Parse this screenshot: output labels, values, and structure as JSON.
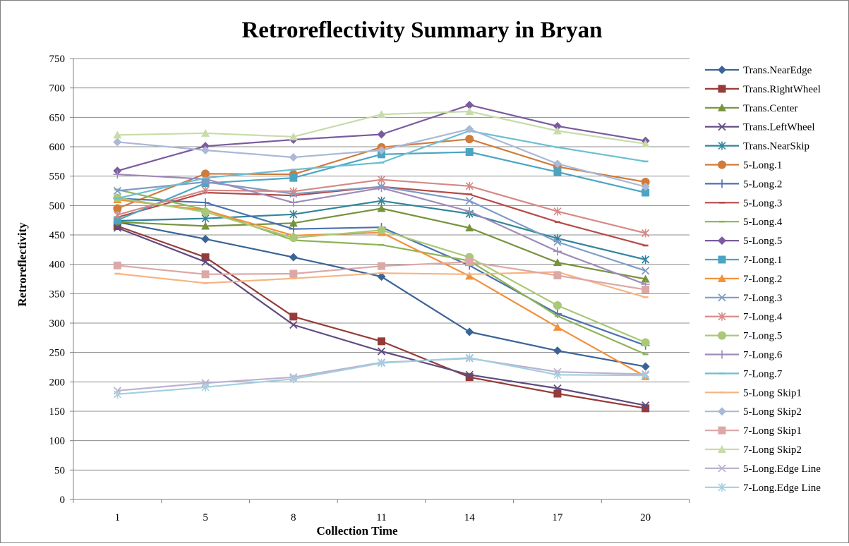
{
  "chart_data": {
    "type": "line",
    "title": "Retroreflectivity Summary in Bryan",
    "xlabel": "Collection Time",
    "ylabel": "Retroreflectivity",
    "categories": [
      "1",
      "5",
      "8",
      "11",
      "14",
      "17",
      "20"
    ],
    "ylim": [
      0,
      750
    ],
    "ytick_step": 50,
    "grid": true,
    "legend_position": "right",
    "series": [
      {
        "name": "Trans.NearEdge",
        "color": "#3b6496",
        "marker": "diamond",
        "values": [
          472,
          443,
          412,
          379,
          285,
          253,
          226
        ]
      },
      {
        "name": "Trans.RightWheel",
        "color": "#963b38",
        "marker": "square",
        "values": [
          465,
          412,
          311,
          269,
          208,
          180,
          155
        ]
      },
      {
        "name": "Trans.Center",
        "color": "#77933c",
        "marker": "triangle",
        "values": [
          472,
          465,
          470,
          495,
          462,
          403,
          375
        ]
      },
      {
        "name": "Trans.LeftWheel",
        "color": "#5f4b80",
        "marker": "x",
        "values": [
          462,
          404,
          297,
          252,
          212,
          189,
          160
        ]
      },
      {
        "name": "Trans.NearSkip",
        "color": "#31859c",
        "marker": "star",
        "values": [
          474,
          478,
          485,
          508,
          486,
          444,
          408
        ]
      },
      {
        "name": "5-Long.1",
        "color": "#d07b3c",
        "marker": "circle",
        "values": [
          495,
          554,
          553,
          599,
          613,
          566,
          540
        ]
      },
      {
        "name": "5-Long.2",
        "color": "#4a72b0",
        "marker": "plus",
        "values": [
          512,
          505,
          460,
          463,
          398,
          316,
          262
        ]
      },
      {
        "name": "5-Long.3",
        "color": "#b64a47",
        "marker": "dash",
        "values": [
          480,
          522,
          517,
          532,
          519,
          472,
          432
        ]
      },
      {
        "name": "5-Long.4",
        "color": "#8db356",
        "marker": "dash",
        "values": [
          527,
          493,
          441,
          433,
          406,
          312,
          247
        ]
      },
      {
        "name": "5-Long.5",
        "color": "#7a5b9e",
        "marker": "diamond",
        "values": [
          559,
          601,
          612,
          621,
          671,
          635,
          610
        ]
      },
      {
        "name": "7-Long.1",
        "color": "#4ba5c2",
        "marker": "square",
        "values": [
          475,
          538,
          547,
          587,
          591,
          557,
          522
        ]
      },
      {
        "name": "7-Long.2",
        "color": "#f2913b",
        "marker": "triangle",
        "values": [
          510,
          492,
          449,
          454,
          380,
          293,
          209
        ]
      },
      {
        "name": "7-Long.3",
        "color": "#7d9bc6",
        "marker": "x",
        "values": [
          525,
          540,
          520,
          532,
          508,
          438,
          389
        ]
      },
      {
        "name": "7-Long.4",
        "color": "#d68986",
        "marker": "star",
        "values": [
          484,
          526,
          524,
          544,
          533,
          490,
          453
        ]
      },
      {
        "name": "7-Long.5",
        "color": "#a9c878",
        "marker": "circle",
        "values": [
          513,
          489,
          445,
          458,
          412,
          330,
          267
        ]
      },
      {
        "name": "7-Long.6",
        "color": "#9f8bb8",
        "marker": "plus",
        "values": [
          553,
          545,
          505,
          530,
          490,
          422,
          366
        ]
      },
      {
        "name": "7-Long.7",
        "color": "#6cbfd2",
        "marker": "dash",
        "values": [
          512,
          547,
          561,
          573,
          627,
          599,
          575
        ]
      },
      {
        "name": "5-Long Skip1",
        "color": "#f7b481",
        "marker": "dash",
        "values": [
          384,
          368,
          376,
          385,
          383,
          387,
          344
        ]
      },
      {
        "name": "5-Long Skip2",
        "color": "#a9b9d6",
        "marker": "diamond",
        "values": [
          608,
          594,
          582,
          594,
          630,
          571,
          532
        ]
      },
      {
        "name": "7-Long Skip1",
        "color": "#dca8a6",
        "marker": "square",
        "values": [
          398,
          383,
          384,
          397,
          404,
          381,
          357
        ]
      },
      {
        "name": "7-Long Skip2",
        "color": "#c7dca9",
        "marker": "triangle",
        "values": [
          620,
          623,
          617,
          655,
          660,
          627,
          605
        ]
      },
      {
        "name": "5-Long.Edge Line",
        "color": "#bcb1cf",
        "marker": "x",
        "values": [
          185,
          198,
          208,
          233,
          240,
          217,
          213
        ]
      },
      {
        "name": "7-Long.Edge Line",
        "color": "#a3cfe0",
        "marker": "star",
        "values": [
          179,
          191,
          205,
          232,
          241,
          212,
          211
        ]
      }
    ]
  }
}
